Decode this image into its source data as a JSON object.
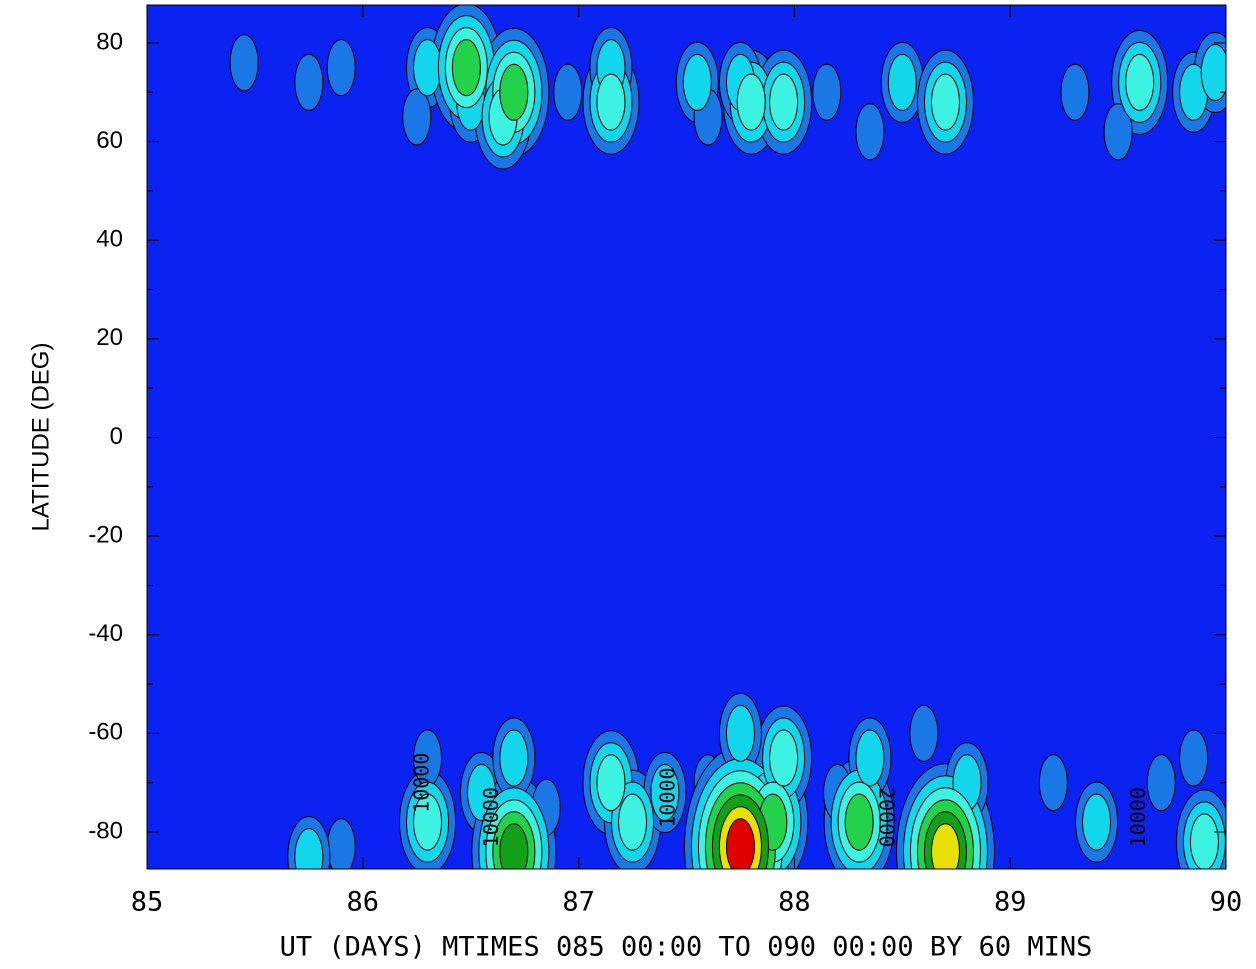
{
  "chart_data": {
    "type": "contour",
    "xlabel": "UT (DAYS) MTIMES 085 00:00 TO 090 00:00 BY   60 MINS",
    "ylabel": "LATITUDE (DEG)",
    "xlim": [
      85,
      90
    ],
    "ylim": [
      -87.5,
      87.7
    ],
    "xticks": [
      85,
      86,
      87,
      88,
      89,
      90
    ],
    "yticks": [
      -80,
      -60,
      -40,
      -20,
      0,
      20,
      40,
      60,
      80
    ],
    "yminorticks": [
      -70,
      -50,
      -30,
      -10,
      10,
      30,
      50,
      70
    ],
    "levels": [
      0,
      5000,
      10000,
      15000,
      20000,
      25000,
      30000,
      35000
    ],
    "colors": [
      "#0a22f2",
      "#1a78e6",
      "#12d6ec",
      "#3cf2e0",
      "#22d24a",
      "#12a018",
      "#e8e000",
      "#e00000"
    ],
    "points": {
      "x": [
        85.45,
        85.75,
        85.9,
        86.3,
        86.25,
        86.48,
        86.5,
        86.7,
        86.65,
        86.95,
        87.15,
        87.15,
        87.55,
        87.6,
        87.8,
        87.95,
        87.75,
        88.15,
        88.5,
        88.7,
        88.35,
        89.3,
        89.6,
        89.85,
        89.5,
        89.95,
        85.9,
        85.75,
        86.3,
        86.3,
        86.55,
        86.7,
        86.7,
        86.85,
        87.15,
        87.25,
        87.4,
        87.6,
        87.75,
        87.9,
        87.95,
        87.75,
        88.3,
        88.35,
        88.2,
        88.7,
        88.8,
        88.6,
        89.2,
        89.4,
        89.7,
        89.9,
        89.85
      ],
      "y": [
        76,
        72,
        75,
        75,
        65,
        75,
        68,
        70,
        65,
        70,
        68,
        75,
        72,
        65,
        68,
        68,
        72,
        70,
        72,
        68,
        62,
        70,
        72,
        70,
        62,
        74,
        -83,
        -85,
        -78,
        -65,
        -72,
        -84,
        -65,
        -75,
        -70,
        -78,
        -72,
        -70,
        -83,
        -78,
        -65,
        -60,
        -78,
        -65,
        -72,
        -84,
        -70,
        -60,
        -70,
        -78,
        -70,
        -82,
        -65
      ],
      "values": [
        5000,
        5000,
        5000,
        10000,
        5000,
        20000,
        10000,
        20000,
        15000,
        5000,
        15000,
        10000,
        10000,
        5000,
        15000,
        15000,
        10000,
        5000,
        10000,
        15000,
        5000,
        5000,
        15000,
        10000,
        5000,
        10000,
        5000,
        10000,
        15000,
        5000,
        10000,
        25000,
        10000,
        5000,
        15000,
        15000,
        10000,
        5000,
        35000,
        20000,
        15000,
        10000,
        20000,
        10000,
        5000,
        30000,
        10000,
        5000,
        5000,
        10000,
        5000,
        15000,
        5000
      ]
    },
    "contour_labels": [
      {
        "text": "10000",
        "x": 86.28,
        "y": -70
      },
      {
        "text": "10000",
        "x": 86.6,
        "y": -77
      },
      {
        "text": "10000",
        "x": 87.42,
        "y": -73
      },
      {
        "text": "20000",
        "x": 88.42,
        "y": -77
      },
      {
        "text": "10000",
        "x": 89.6,
        "y": -77
      }
    ]
  }
}
